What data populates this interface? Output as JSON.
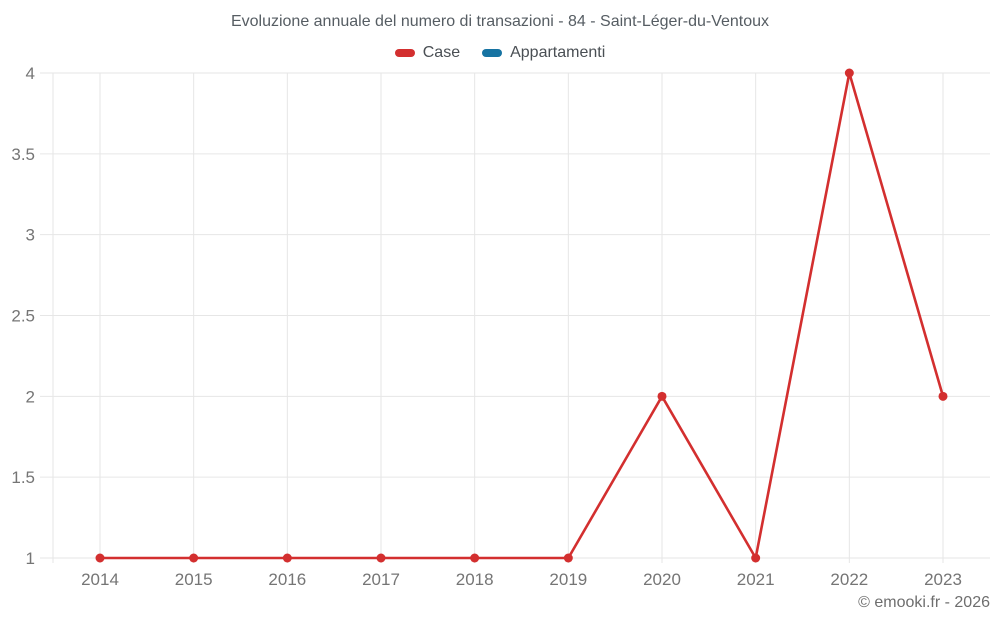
{
  "header": {
    "title": "Evoluzione annuale del numero di transazioni - 84 - Saint-Léger-du-Ventoux"
  },
  "legend": {
    "items": [
      {
        "label": "Case",
        "color": "#d32f2f"
      },
      {
        "label": "Appartamenti",
        "color": "#1673a2"
      }
    ]
  },
  "footer": {
    "attribution": "© emooki.fr - 2026"
  },
  "chart_data": {
    "type": "line",
    "title": "Evoluzione annuale del numero di transazioni - 84 - Saint-Léger-du-Ventoux",
    "categories": [
      "2014",
      "2015",
      "2016",
      "2017",
      "2018",
      "2019",
      "2020",
      "2021",
      "2022",
      "2023"
    ],
    "series": [
      {
        "name": "Case",
        "color": "#d32f2f",
        "values": [
          1,
          1,
          1,
          1,
          1,
          1,
          2,
          1,
          4,
          2
        ]
      },
      {
        "name": "Appartamenti",
        "color": "#1673a2",
        "values": []
      }
    ],
    "xlabel": "",
    "ylabel": "",
    "ylim": [
      1,
      4
    ],
    "yticks": [
      1,
      1.5,
      2,
      2.5,
      3,
      3.5,
      4
    ],
    "grid": true,
    "gridline_color": "#e6e6e6",
    "axis_label_color": "#757575",
    "legend_position": "top",
    "marker_radius": 4.5
  }
}
